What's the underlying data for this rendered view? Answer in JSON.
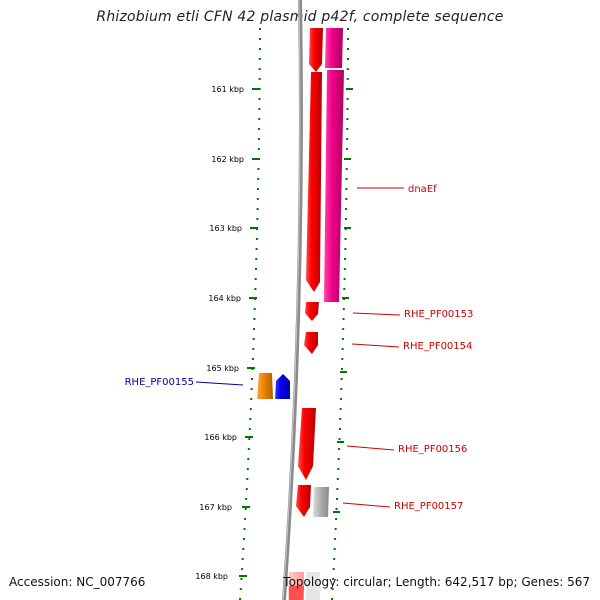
{
  "title": "Rhizobium etli CFN 42 plasmid p42f, complete sequence",
  "footer": {
    "accession": "Accession: NC_007766",
    "topology": "Topology: circular; Length: 642,517 bp; Genes: 567"
  },
  "scale": {
    "ticks": [
      "161 kbp",
      "162 kbp",
      "163 kbp",
      "164 kbp",
      "165 kbp",
      "166 kbp",
      "167 kbp",
      "168 kbp"
    ]
  },
  "genes": [
    {
      "label": "dnaEf",
      "color": "#cc0000"
    },
    {
      "label": "RHE_PF00153",
      "color": "#cc0000"
    },
    {
      "label": "RHE_PF00154",
      "color": "#cc0000"
    },
    {
      "label": "RHE_PF00155",
      "color": "#000099"
    },
    {
      "label": "RHE_PF00156",
      "color": "#cc0000"
    },
    {
      "label": "RHE_PF00157",
      "color": "#cc0000"
    }
  ],
  "colors": {
    "backbone": "#888888",
    "forward_gene": "#ee0000",
    "reverse_gene_blue": "#0000ee",
    "reverse_gene_orange": "#ee8800",
    "pink_feature": "#ee1199",
    "gray_feature": "#aaaaaa",
    "tick_marks": "#007700"
  }
}
